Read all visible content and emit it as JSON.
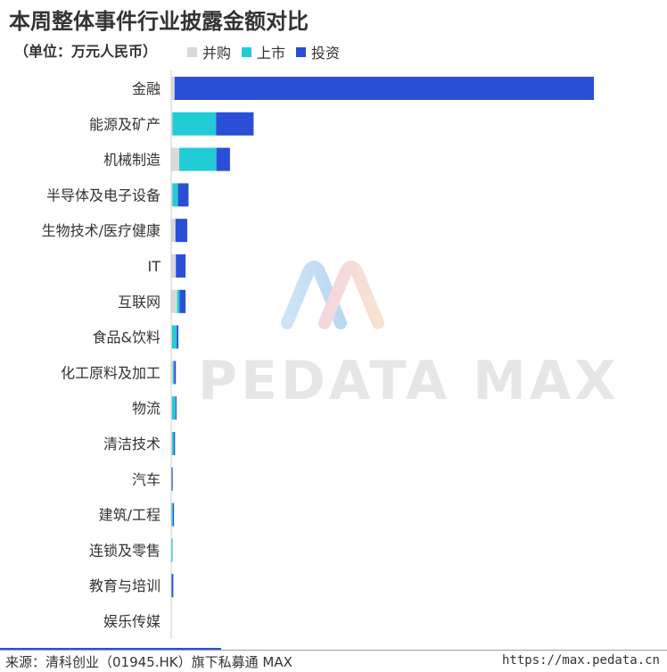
{
  "header": {
    "title": "本周整体事件行业披露金额对比",
    "unit": "（单位：万元人民币）"
  },
  "legend": [
    {
      "label": "并购",
      "color": "#d9d9d9"
    },
    {
      "label": "上市",
      "color": "#22ccd6"
    },
    {
      "label": "投资",
      "color": "#2a4fd6"
    }
  ],
  "watermark": {
    "text": "PEDATA MAX"
  },
  "footer": {
    "source": "来源：清科创业（01945.HK）旗下私募通 MAX",
    "url": "https://max.pedata.cn"
  },
  "chart_data": {
    "type": "bar",
    "orientation": "horizontal",
    "stacked": true,
    "title": "本周整体事件行业披露金额对比",
    "ylabel": "（单位：万元人民币）",
    "grid": false,
    "legend_position": "top-left",
    "xlim": [
      0,
      100
    ],
    "categories": [
      "金融",
      "能源及矿产",
      "机械制造",
      "半导体及电子设备",
      "生物技术/医疗健康",
      "IT",
      "互联网",
      "食品&饮料",
      "化工原料及加工",
      "物流",
      "清洁技术",
      "汽车",
      "建筑/工程",
      "连锁及零售",
      "教育与培训",
      "娱乐传媒"
    ],
    "series": [
      {
        "name": "并购",
        "color": "#d9d9d9",
        "values": [
          0.8,
          0.3,
          1.9,
          0.3,
          1.0,
          1.1,
          1.4,
          0.2,
          0.4,
          0.2,
          0.2,
          0.1,
          0.1,
          0.1,
          0.1,
          0
        ]
      },
      {
        "name": "上市",
        "color": "#22ccd6",
        "values": [
          0,
          10.3,
          8.8,
          1.3,
          0,
          0,
          0.6,
          1.1,
          0.3,
          0.8,
          0.4,
          0,
          0.3,
          0.2,
          0,
          0
        ]
      },
      {
        "name": "投资",
        "color": "#2a4fd6",
        "values": [
          99.2,
          8.9,
          3.2,
          2.5,
          2.8,
          2.3,
          1.4,
          0.4,
          0.4,
          0.1,
          0.3,
          0.2,
          0.1,
          0,
          0.4,
          0
        ]
      }
    ]
  }
}
